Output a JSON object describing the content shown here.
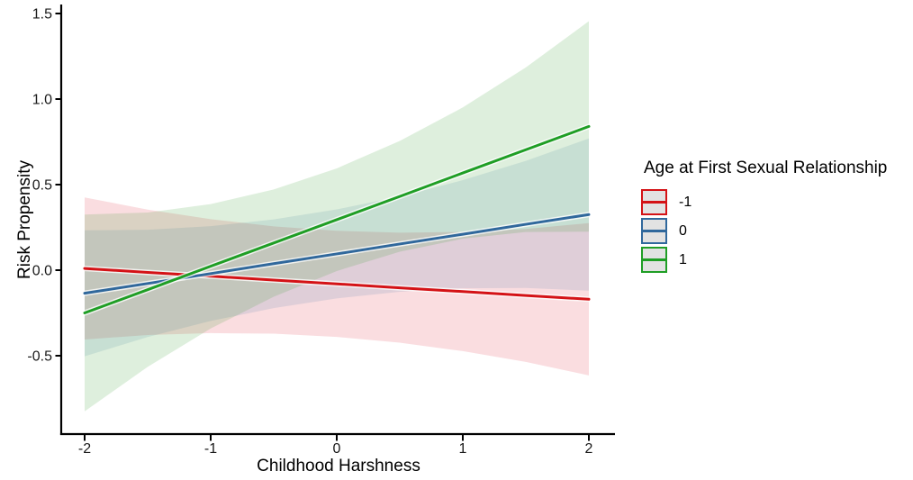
{
  "chart_data": {
    "type": "line",
    "title": "",
    "xlabel": "Childhood Harshness",
    "ylabel": "Risk Propensity",
    "legend": {
      "title": "Age at First Sexual Relationship",
      "position": "right",
      "entries": [
        "-1",
        "0",
        "1"
      ]
    },
    "axes": {
      "xlim": [
        -2.2,
        2.2
      ],
      "ylim": [
        -0.95,
        1.55
      ],
      "x_ticks": [
        -2,
        -1,
        0,
        1,
        2
      ],
      "x_tick_labels": [
        "-2",
        "-1",
        "0",
        "1",
        "2"
      ],
      "y_ticks": [
        -0.5,
        0,
        0.5,
        1,
        1.5
      ],
      "y_tick_labels": [
        "-0.5",
        "0.0",
        "0.5",
        "1.0",
        "1.5"
      ],
      "grid": "off",
      "theme": "classic (left and bottom axis lines only)"
    },
    "x": [
      -2,
      -1.5,
      -1,
      -0.5,
      0,
      0.5,
      1,
      1.5,
      2
    ],
    "series": [
      {
        "name": "-1",
        "color": "#D41216",
        "fill_rgba": "rgba(224,45,60,0.16)",
        "y": [
          0.01,
          -0.013,
          -0.035,
          -0.058,
          -0.08,
          -0.103,
          -0.125,
          -0.148,
          -0.17
        ],
        "ci_upper": [
          0.425,
          0.354,
          0.298,
          0.256,
          0.23,
          0.219,
          0.223,
          0.241,
          0.275
        ],
        "ci_lower": [
          -0.405,
          -0.379,
          -0.368,
          -0.371,
          -0.39,
          -0.424,
          -0.473,
          -0.536,
          -0.615
        ]
      },
      {
        "name": "0",
        "color": "#30689C",
        "fill_rgba": "rgba(50,110,160,0.13)",
        "y": [
          -0.135,
          -0.078,
          -0.02,
          0.038,
          0.095,
          0.153,
          0.21,
          0.268,
          0.325
        ],
        "ci_upper": [
          0.233,
          0.236,
          0.257,
          0.297,
          0.355,
          0.431,
          0.526,
          0.639,
          0.77
        ],
        "ci_lower": [
          -0.503,
          -0.391,
          -0.297,
          -0.222,
          -0.165,
          -0.126,
          -0.106,
          -0.104,
          -0.12
        ]
      },
      {
        "name": "1",
        "color": "#1F9E25",
        "fill_rgba": "rgba(60,160,55,0.17)",
        "y": [
          -0.25,
          -0.114,
          0.023,
          0.159,
          0.295,
          0.431,
          0.568,
          0.704,
          0.84
        ],
        "ci_upper": [
          0.325,
          0.337,
          0.386,
          0.472,
          0.595,
          0.755,
          0.951,
          1.185,
          1.455
        ],
        "ci_lower": [
          -0.825,
          -0.565,
          -0.341,
          -0.155,
          -0.005,
          0.108,
          0.184,
          0.223,
          0.225
        ]
      }
    ],
    "annotation": "Three linear fits with shaded confidence ribbons crossing near x = -1.2, y = 0"
  }
}
